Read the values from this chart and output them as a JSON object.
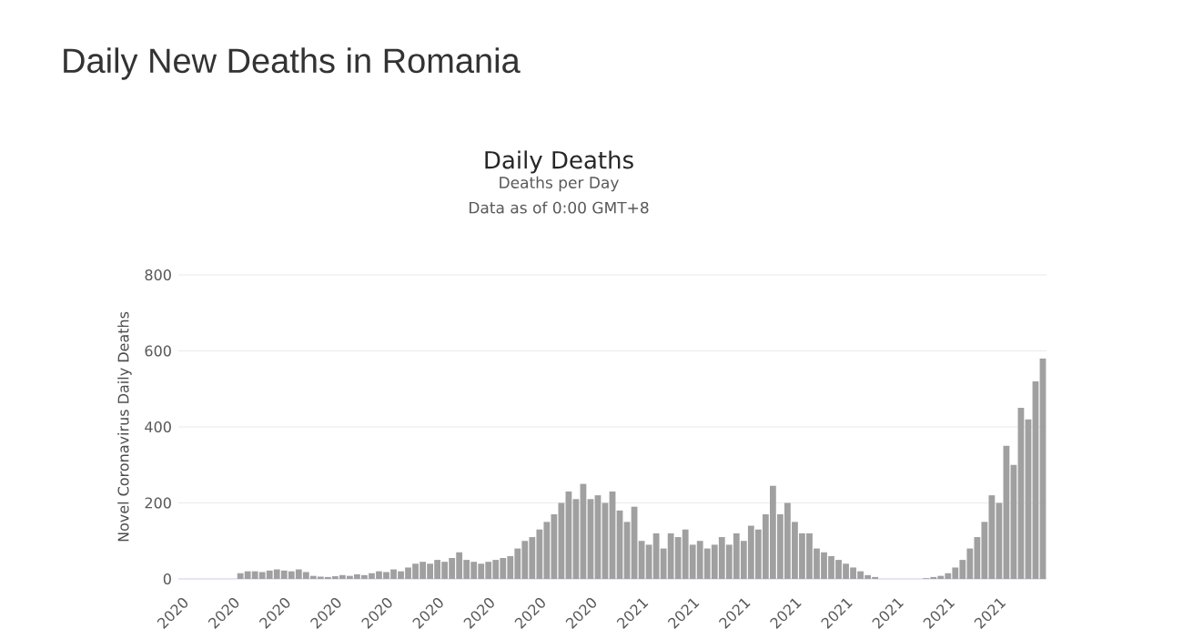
{
  "chart_data": {
    "type": "bar",
    "title": "Daily New Deaths in Romania",
    "subtitle": "Daily Deaths",
    "annotations": [
      "Deaths per Day",
      "Data as of 0:00 GMT+8"
    ],
    "ylabel": "Novel Coronavirus Daily Deaths",
    "categories": [
      "2020",
      null,
      null,
      null,
      null,
      null,
      null,
      "2020",
      null,
      null,
      null,
      null,
      null,
      null,
      "2020",
      null,
      null,
      null,
      null,
      null,
      null,
      "2020",
      null,
      null,
      null,
      null,
      null,
      null,
      "2020",
      null,
      null,
      null,
      null,
      null,
      null,
      "2020",
      null,
      null,
      null,
      null,
      null,
      null,
      "2020",
      null,
      null,
      null,
      null,
      null,
      null,
      "2020",
      null,
      null,
      null,
      null,
      null,
      null,
      "2020",
      null,
      null,
      null,
      null,
      null,
      null,
      "2021",
      null,
      null,
      null,
      null,
      null,
      null,
      "2021",
      null,
      null,
      null,
      null,
      null,
      null,
      "2021",
      null,
      null,
      null,
      null,
      null,
      null,
      "2021",
      null,
      null,
      null,
      null,
      null,
      null,
      "2021",
      null,
      null,
      null,
      null,
      null,
      null,
      "2021",
      null,
      null,
      null,
      null,
      null,
      null,
      "2021",
      null,
      null,
      null,
      null,
      null,
      null,
      "2021",
      null,
      null,
      null,
      null,
      null,
      null
    ],
    "values": [
      0,
      0,
      0,
      0,
      0,
      0,
      0,
      0,
      15,
      20,
      20,
      18,
      22,
      25,
      22,
      20,
      25,
      18,
      8,
      6,
      5,
      7,
      10,
      8,
      12,
      10,
      15,
      20,
      18,
      25,
      20,
      30,
      40,
      45,
      40,
      50,
      45,
      55,
      70,
      50,
      45,
      40,
      45,
      50,
      55,
      60,
      80,
      100,
      110,
      130,
      150,
      170,
      200,
      230,
      210,
      250,
      210,
      220,
      200,
      230,
      180,
      150,
      190,
      100,
      90,
      120,
      80,
      120,
      110,
      130,
      90,
      100,
      80,
      90,
      110,
      90,
      120,
      100,
      140,
      130,
      170,
      245,
      170,
      200,
      150,
      120,
      120,
      80,
      70,
      60,
      50,
      40,
      30,
      20,
      10,
      5,
      0,
      0,
      0,
      0,
      0,
      0,
      2,
      5,
      8,
      15,
      30,
      50,
      80,
      110,
      150,
      220,
      200,
      350,
      300,
      450,
      420,
      520,
      580
    ],
    "color": "#a0a0a0",
    "ylim": [
      0,
      800
    ],
    "yticks": [
      0,
      200,
      400,
      600,
      800
    ],
    "grid": "y"
  }
}
